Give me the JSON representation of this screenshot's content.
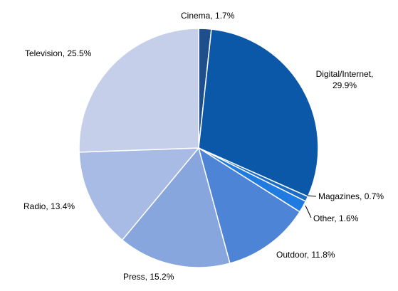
{
  "chart_data": {
    "type": "pie",
    "title": "",
    "start_angle_deg": 0,
    "direction": "clockwise",
    "slices": [
      {
        "label": "Cinema",
        "value": 1.7,
        "display": "Cinema,  1.7%",
        "color": "#1f4e8c"
      },
      {
        "label": "Digital/Internet",
        "value": 29.9,
        "display_lines": [
          "Digital/Internet,",
          "29.9%"
        ],
        "color": "#0b58a8"
      },
      {
        "label": "Magazines",
        "value": 0.7,
        "display": "Magazines,  0.7%",
        "color": "#1a6cc7"
      },
      {
        "label": "Other",
        "value": 1.6,
        "display": "Other,  1.6%",
        "color": "#1f7be0"
      },
      {
        "label": "Outdoor",
        "value": 11.8,
        "display": "Outdoor,  11.8%",
        "color": "#4d84d6"
      },
      {
        "label": "Press",
        "value": 15.2,
        "display": "Press, 15.2%",
        "color": "#88a6de"
      },
      {
        "label": "Radio",
        "value": 13.4,
        "display": "Radio,  13.4%",
        "color": "#a7bbe4"
      },
      {
        "label": "Television",
        "value": 25.5,
        "display": "Television,  25.5%",
        "color": "#c5cfea"
      }
    ]
  }
}
